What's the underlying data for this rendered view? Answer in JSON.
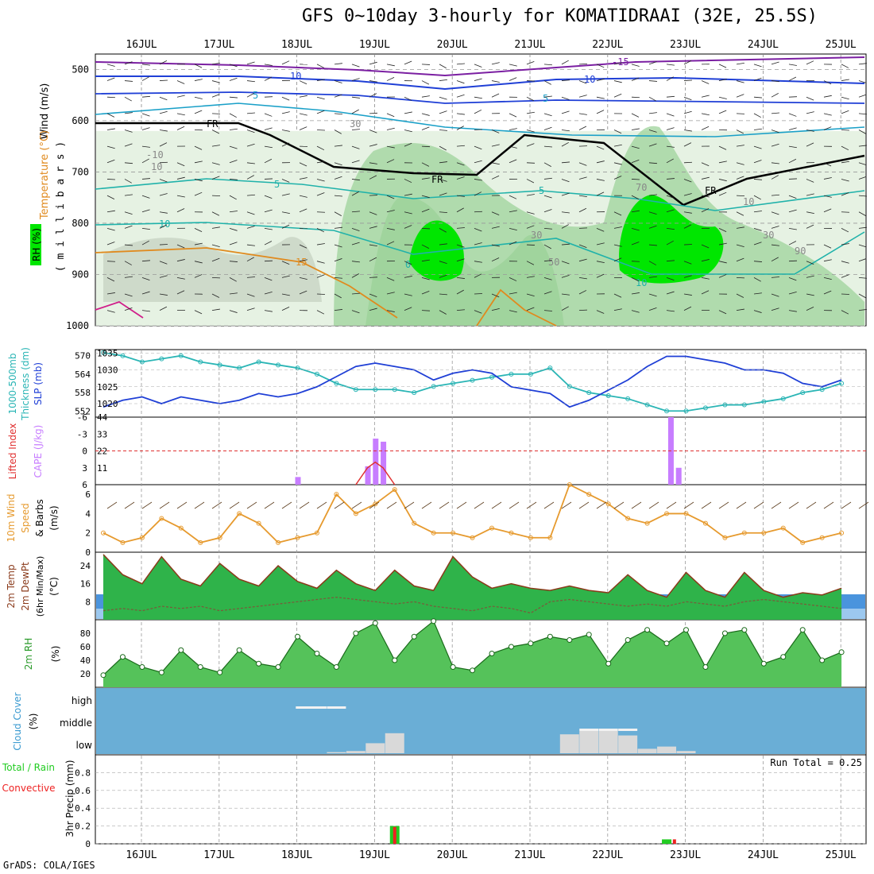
{
  "title": "GFS 0~10day 3-hourly for KOMATIDRAAI (32E, 25.5S)",
  "credit": "GrADS: COLA/IGES",
  "colors": {
    "rh_green_light": "#e6f2e3",
    "rh_green_mid": "#9ed39b",
    "rh_green_bright": "#00e600",
    "contour_blue": "#1f3fd6",
    "contour_purple": "#7b1fa2",
    "contour_cyan": "#1aa0c8",
    "contour_teal": "#20b2aa",
    "contour_orange": "#e08a1e",
    "contour_magenta": "#d01f8a",
    "freezing": "#000000",
    "cloud_bg": "#6aaed6",
    "cloud_bar": "#d9d9d9",
    "cape": "#c77dff",
    "lifted": "#e03030",
    "wind_speed": "#e69a2e",
    "slp": "#1f3fd6",
    "thickness": "#2ab5b5",
    "precip_total": "#22cc22",
    "precip_conv": "#ee2222"
  },
  "x_labels": [
    "16JUL",
    "17JUL",
    "18JUL",
    "19JUL",
    "20JUL",
    "21JUL",
    "22JUL",
    "23JUL",
    "24JUL",
    "25JUL"
  ],
  "panels": {
    "upper": {
      "ylabel_wind": "Wind (m/s)",
      "ylabel_temp": "Temperature (°C)",
      "ylabel_rh": "RH (%)",
      "ylabel_unit": "( m i l l i b a r s )",
      "yticks": [
        "500",
        "600",
        "700",
        "800",
        "900",
        "1000"
      ],
      "contour_labels": [
        "-15",
        "10",
        "10",
        "5",
        "5",
        "5",
        "5",
        "10",
        "10",
        "15",
        "-10",
        "FR",
        "FR",
        "FR",
        "0",
        "10",
        "30",
        "30",
        "50",
        "30",
        "70",
        "90",
        "10"
      ]
    },
    "slp": {
      "ylabel_left": "1000-500mb",
      "ylabel_left2": "Thickness (dm)",
      "ylabel_right": "SLP (mb)",
      "yticks_left": [
        "570",
        "564",
        "558",
        "552"
      ],
      "yticks_right": [
        "1035",
        "1030",
        "1025",
        "1020"
      ]
    },
    "cape": {
      "ylabel_left": "Lifted Index",
      "ylabel_right": "CAPE (J/kg)",
      "yticks_left": [
        "-6",
        "-3",
        "0",
        "3",
        "6"
      ],
      "yticks_right": [
        "44",
        "33",
        "22",
        "11"
      ]
    },
    "wind10": {
      "ylabel1": "10m Wind",
      "ylabel2": "Speed",
      "ylabel3": "& Barbs",
      "unit": "(m/s)",
      "yticks": [
        "6",
        "4",
        "2",
        "0"
      ]
    },
    "temp2m": {
      "ylabel1": "2m Temp",
      "ylabel2": "2m DewPt",
      "ylabel3": "(6hr Min/Max)",
      "unit": "(°C)",
      "yticks": [
        "24",
        "16",
        "8"
      ]
    },
    "rh2m": {
      "ylabel": "2m RH",
      "unit": "(%)",
      "yticks": [
        "80",
        "60",
        "40",
        "20"
      ]
    },
    "cloud": {
      "ylabel": "Cloud Cover",
      "unit": "(%)",
      "levels": [
        "high",
        "middle",
        "low"
      ]
    },
    "precip": {
      "ylabel1": "Total / Rain",
      "ylabel2": "Convective",
      "unit": "3hr Precip (mm)",
      "yticks": [
        "0.8",
        "0.6",
        "0.4",
        "0.2",
        "0"
      ],
      "run_total": "Run Total = 0.25"
    }
  },
  "chart_data": [
    {
      "type": "line",
      "title": "SLP and 1000-500mb thickness",
      "series": [
        {
          "name": "SLP (mb)",
          "axis": "right",
          "x_days": [
            0,
            0.25,
            0.5,
            0.75,
            1,
            1.25,
            1.5,
            1.75,
            2,
            2.25,
            2.5,
            2.75,
            3,
            3.25,
            3.5,
            3.75,
            4,
            4.25,
            4.5,
            4.75,
            5,
            5.25,
            5.5,
            5.75,
            6,
            6.25,
            6.5,
            6.75,
            7,
            7.25,
            7.5,
            7.75,
            8,
            8.25,
            8.5,
            8.75,
            9,
            9.25,
            9.5
          ],
          "values": [
            1019,
            1021,
            1022,
            1020,
            1022,
            1021,
            1020,
            1021,
            1023,
            1022,
            1023,
            1025,
            1028,
            1031,
            1032,
            1031,
            1030,
            1027,
            1029,
            1030,
            1029,
            1025,
            1024,
            1023,
            1019,
            1021,
            1024,
            1027,
            1031,
            1034,
            1034,
            1033,
            1032,
            1030,
            1030,
            1029,
            1026,
            1025,
            1027
          ]
        },
        {
          "name": "1000-500mb Thickness (dm)",
          "axis": "left",
          "x_days": [
            0,
            0.25,
            0.5,
            0.75,
            1,
            1.25,
            1.5,
            1.75,
            2,
            2.25,
            2.5,
            2.75,
            3,
            3.25,
            3.5,
            3.75,
            4,
            4.25,
            4.5,
            4.75,
            5,
            5.25,
            5.5,
            5.75,
            6,
            6.25,
            6.5,
            6.75,
            7,
            7.25,
            7.5,
            7.75,
            8,
            8.25,
            8.5,
            8.75,
            9,
            9.25,
            9.5
          ],
          "values": [
            571,
            570,
            568,
            569,
            570,
            568,
            567,
            566,
            568,
            567,
            566,
            564,
            561,
            559,
            559,
            559,
            558,
            560,
            561,
            562,
            563,
            564,
            564,
            566,
            560,
            558,
            557,
            556,
            554,
            552,
            552,
            553,
            554,
            554,
            555,
            556,
            558,
            559,
            561
          ]
        }
      ],
      "ylim_left": [
        550,
        572
      ],
      "ylim_right": [
        1016,
        1036
      ]
    },
    {
      "type": "bar",
      "title": "CAPE and Lifted Index",
      "series": [
        {
          "name": "CAPE (J/kg)",
          "axis": "right",
          "x_days": [
            2.5,
            3.4,
            3.5,
            3.6,
            7.3,
            7.4
          ],
          "values": [
            5,
            12,
            30,
            28,
            44,
            11
          ]
        },
        {
          "name": "Lifted Index",
          "axis": "left",
          "type": "line",
          "x_days": [
            3.25,
            3.4,
            3.5,
            3.6,
            3.75
          ],
          "values": [
            6,
            3,
            2,
            3,
            6
          ]
        }
      ],
      "ylim_left": [
        6,
        -6
      ],
      "ylim_right": [
        0,
        44
      ]
    },
    {
      "type": "line",
      "title": "10m wind speed",
      "series": [
        {
          "name": "Speed (m/s)",
          "x_days": [
            0,
            0.25,
            0.5,
            0.75,
            1,
            1.25,
            1.5,
            1.75,
            2,
            2.25,
            2.5,
            2.75,
            3,
            3.25,
            3.5,
            3.75,
            4,
            4.25,
            4.5,
            4.75,
            5,
            5.25,
            5.5,
            5.75,
            6,
            6.25,
            6.5,
            6.75,
            7,
            7.25,
            7.5,
            7.75,
            8,
            8.25,
            8.5,
            8.75,
            9,
            9.25,
            9.5
          ],
          "values": [
            2,
            1,
            1.5,
            3.5,
            2.5,
            1,
            1.5,
            4,
            3,
            1,
            1.5,
            2,
            6,
            4,
            5,
            6.5,
            3,
            2,
            2,
            1.5,
            2.5,
            2,
            1.5,
            1.5,
            7,
            6,
            5,
            3.5,
            3,
            4,
            4,
            3,
            1.5,
            2,
            2,
            2.5,
            1,
            1.5,
            2
          ]
        }
      ],
      "ylim": [
        0,
        7
      ]
    },
    {
      "type": "area",
      "title": "2m Temp and DewPt",
      "series": [
        {
          "name": "2m Temp (°C)",
          "x_days": [
            0,
            0.25,
            0.5,
            0.75,
            1,
            1.25,
            1.5,
            1.75,
            2,
            2.25,
            2.5,
            2.75,
            3,
            3.25,
            3.5,
            3.75,
            4,
            4.25,
            4.5,
            4.75,
            5,
            5.25,
            5.5,
            5.75,
            6,
            6.25,
            6.5,
            6.75,
            7,
            7.25,
            7.5,
            7.75,
            8,
            8.25,
            8.5,
            8.75,
            9,
            9.25,
            9.5
          ],
          "values": [
            29,
            20,
            16,
            28,
            18,
            15,
            25,
            18,
            15,
            24,
            17,
            14,
            22,
            16,
            13,
            22,
            15,
            13,
            28,
            19,
            14,
            16,
            14,
            13,
            15,
            13,
            12,
            20,
            13,
            10,
            21,
            13,
            10,
            21,
            13,
            10,
            12,
            11,
            14
          ]
        },
        {
          "name": "2m DewPt (°C)",
          "x_days": [
            0,
            0.25,
            0.5,
            0.75,
            1,
            1.25,
            1.5,
            1.75,
            2,
            2.25,
            2.5,
            2.75,
            3,
            3.25,
            3.5,
            3.75,
            4,
            4.25,
            4.5,
            4.75,
            5,
            5.25,
            5.5,
            5.75,
            6,
            6.25,
            6.5,
            6.75,
            7,
            7.25,
            7.5,
            7.75,
            8,
            8.25,
            8.5,
            8.75,
            9,
            9.25,
            9.5
          ],
          "values": [
            4,
            5,
            4,
            6,
            5,
            6,
            4,
            5,
            6,
            7,
            8,
            9,
            10,
            9,
            8,
            7,
            8,
            6,
            5,
            4,
            6,
            5,
            3,
            8,
            9,
            8,
            7,
            6,
            7,
            6,
            8,
            7,
            6,
            8,
            9,
            8,
            7,
            6,
            5
          ]
        }
      ],
      "ylim": [
        0,
        30
      ]
    },
    {
      "type": "area",
      "title": "2m RH",
      "series": [
        {
          "name": "2m RH (%)",
          "x_days": [
            0,
            0.25,
            0.5,
            0.75,
            1,
            1.25,
            1.5,
            1.75,
            2,
            2.25,
            2.5,
            2.75,
            3,
            3.25,
            3.5,
            3.75,
            4,
            4.25,
            4.5,
            4.75,
            5,
            5.25,
            5.5,
            5.75,
            6,
            6.25,
            6.5,
            6.75,
            7,
            7.25,
            7.5,
            7.75,
            8,
            8.25,
            8.5,
            8.75,
            9,
            9.25,
            9.5
          ],
          "values": [
            18,
            45,
            30,
            22,
            55,
            30,
            22,
            55,
            35,
            30,
            75,
            50,
            30,
            80,
            95,
            40,
            75,
            98,
            30,
            25,
            50,
            60,
            65,
            75,
            70,
            78,
            35,
            70,
            85,
            65,
            85,
            30,
            80,
            85,
            35,
            45,
            85,
            40,
            52
          ]
        }
      ],
      "ylim": [
        0,
        100
      ]
    },
    {
      "type": "bar",
      "title": "Cloud Cover",
      "series": [
        {
          "name": "high",
          "x_days": [
            2.6,
            2.75,
            3.0
          ],
          "values": [
            10,
            10,
            10
          ]
        },
        {
          "name": "middle",
          "x_days": [
            6.25,
            6.5,
            6.75
          ],
          "values": [
            8,
            8,
            8
          ]
        },
        {
          "name": "low",
          "x_days": [
            3.0,
            3.25,
            3.5,
            3.75,
            6.0,
            6.25,
            6.5,
            6.75,
            7.0,
            7.25,
            7.5
          ],
          "values": [
            5,
            10,
            45,
            90,
            85,
            100,
            100,
            80,
            20,
            30,
            10
          ]
        }
      ],
      "ylim": [
        0,
        100
      ]
    },
    {
      "type": "bar",
      "title": "3hr Precip",
      "series": [
        {
          "name": "Total / Rain",
          "x_days": [
            3.75,
            7.25
          ],
          "values": [
            0.2,
            0.05
          ]
        },
        {
          "name": "Convective",
          "x_days": [
            3.75,
            7.35
          ],
          "values": [
            0.19,
            0.05
          ]
        }
      ],
      "ylim": [
        0,
        1.0
      ]
    }
  ]
}
